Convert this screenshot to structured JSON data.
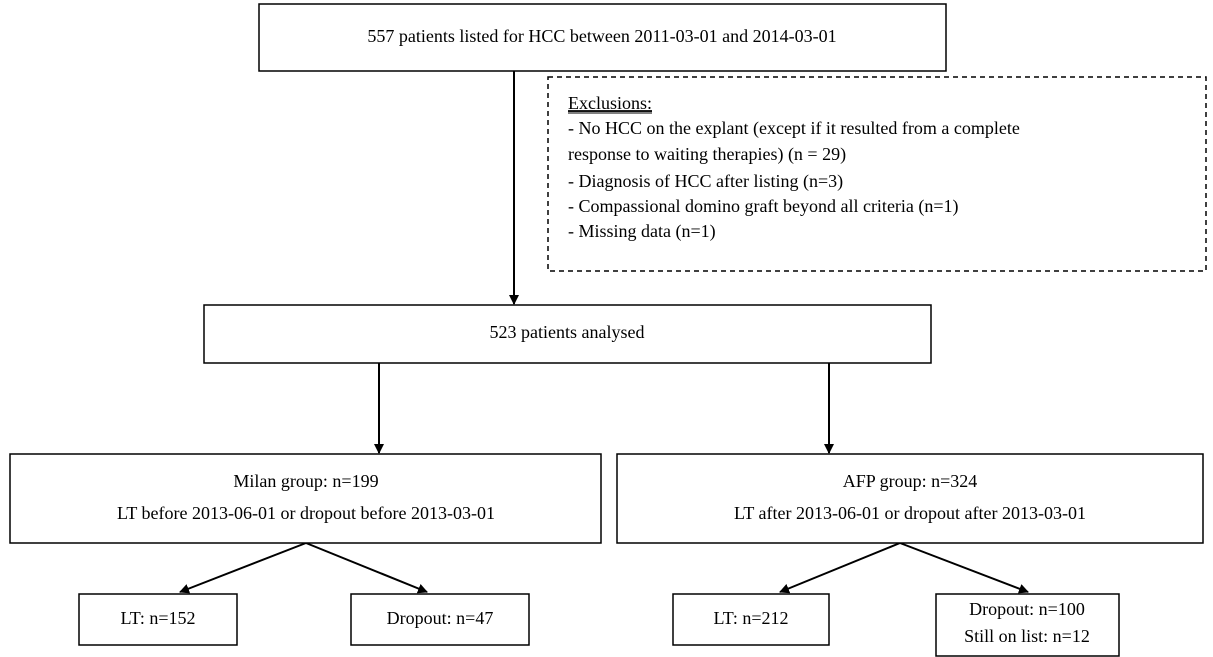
{
  "nodes": [
    {
      "lines": [
        "557 patients listed for HCC between 2011-03-01 and 2014-03-01"
      ]
    },
    {
      "lines": [
        "523 patients analysed"
      ]
    },
    {
      "lines": [
        "Milan group: n=199",
        "LT before 2013-06-01 or dropout before 2013-03-01"
      ]
    },
    {
      "lines": [
        "AFP group: n=324",
        "LT after 2013-06-01 or dropout after 2013-03-01"
      ]
    },
    {
      "lines": [
        "LT: n=152"
      ]
    },
    {
      "lines": [
        "Dropout:  n=47"
      ]
    },
    {
      "lines": [
        "LT: n=212"
      ]
    },
    {
      "lines": [
        "Dropout:  n=100",
        "Still on list: n=12"
      ]
    }
  ],
  "exclusions": {
    "title": "Exclusions:",
    "lines": [
      "- No HCC on the explant (except if it resulted from a complete",
      "response to waiting therapies) (n = 29)",
      "- Diagnosis of HCC after listing (n=3)",
      "- Compassional domino graft beyond all criteria (n=1)",
      "- Missing data (n=1)"
    ]
  }
}
